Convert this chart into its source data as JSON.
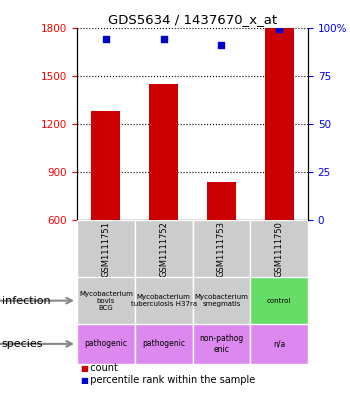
{
  "title": "GDS5634 / 1437670_x_at",
  "samples": [
    "GSM1111751",
    "GSM1111752",
    "GSM1111753",
    "GSM1111750"
  ],
  "bar_values": [
    1280,
    1450,
    840,
    1800
  ],
  "bar_base": 600,
  "percentile_values": [
    94,
    94,
    91,
    99
  ],
  "ylim_left": [
    600,
    1800
  ],
  "ylim_right": [
    0,
    100
  ],
  "yticks_left": [
    600,
    900,
    1200,
    1500,
    1800
  ],
  "yticks_right": [
    0,
    25,
    50,
    75,
    100
  ],
  "ytick_labels_right": [
    "0",
    "25",
    "50",
    "75",
    "100%"
  ],
  "bar_color": "#cc0000",
  "dot_color": "#0000cc",
  "infection_labels": [
    "Mycobacterium\nbovis\nBCG",
    "Mycobacterium\ntuberculosis H37ra",
    "Mycobacterium\nsmegmatis",
    "control"
  ],
  "infection_colors": [
    "#cccccc",
    "#cccccc",
    "#cccccc",
    "#66dd66"
  ],
  "species_labels": [
    "pathogenic",
    "pathogenic",
    "non-pathog\nenic",
    "n/a"
  ],
  "species_colors": [
    "#dd88ee",
    "#dd88ee",
    "#dd88ee",
    "#dd88ee"
  ],
  "row_labels": [
    "infection",
    "species"
  ],
  "legend_items": [
    "count",
    "percentile rank within the sample"
  ],
  "legend_colors": [
    "#cc0000",
    "#0000cc"
  ],
  "sample_bg_color": "#cccccc"
}
